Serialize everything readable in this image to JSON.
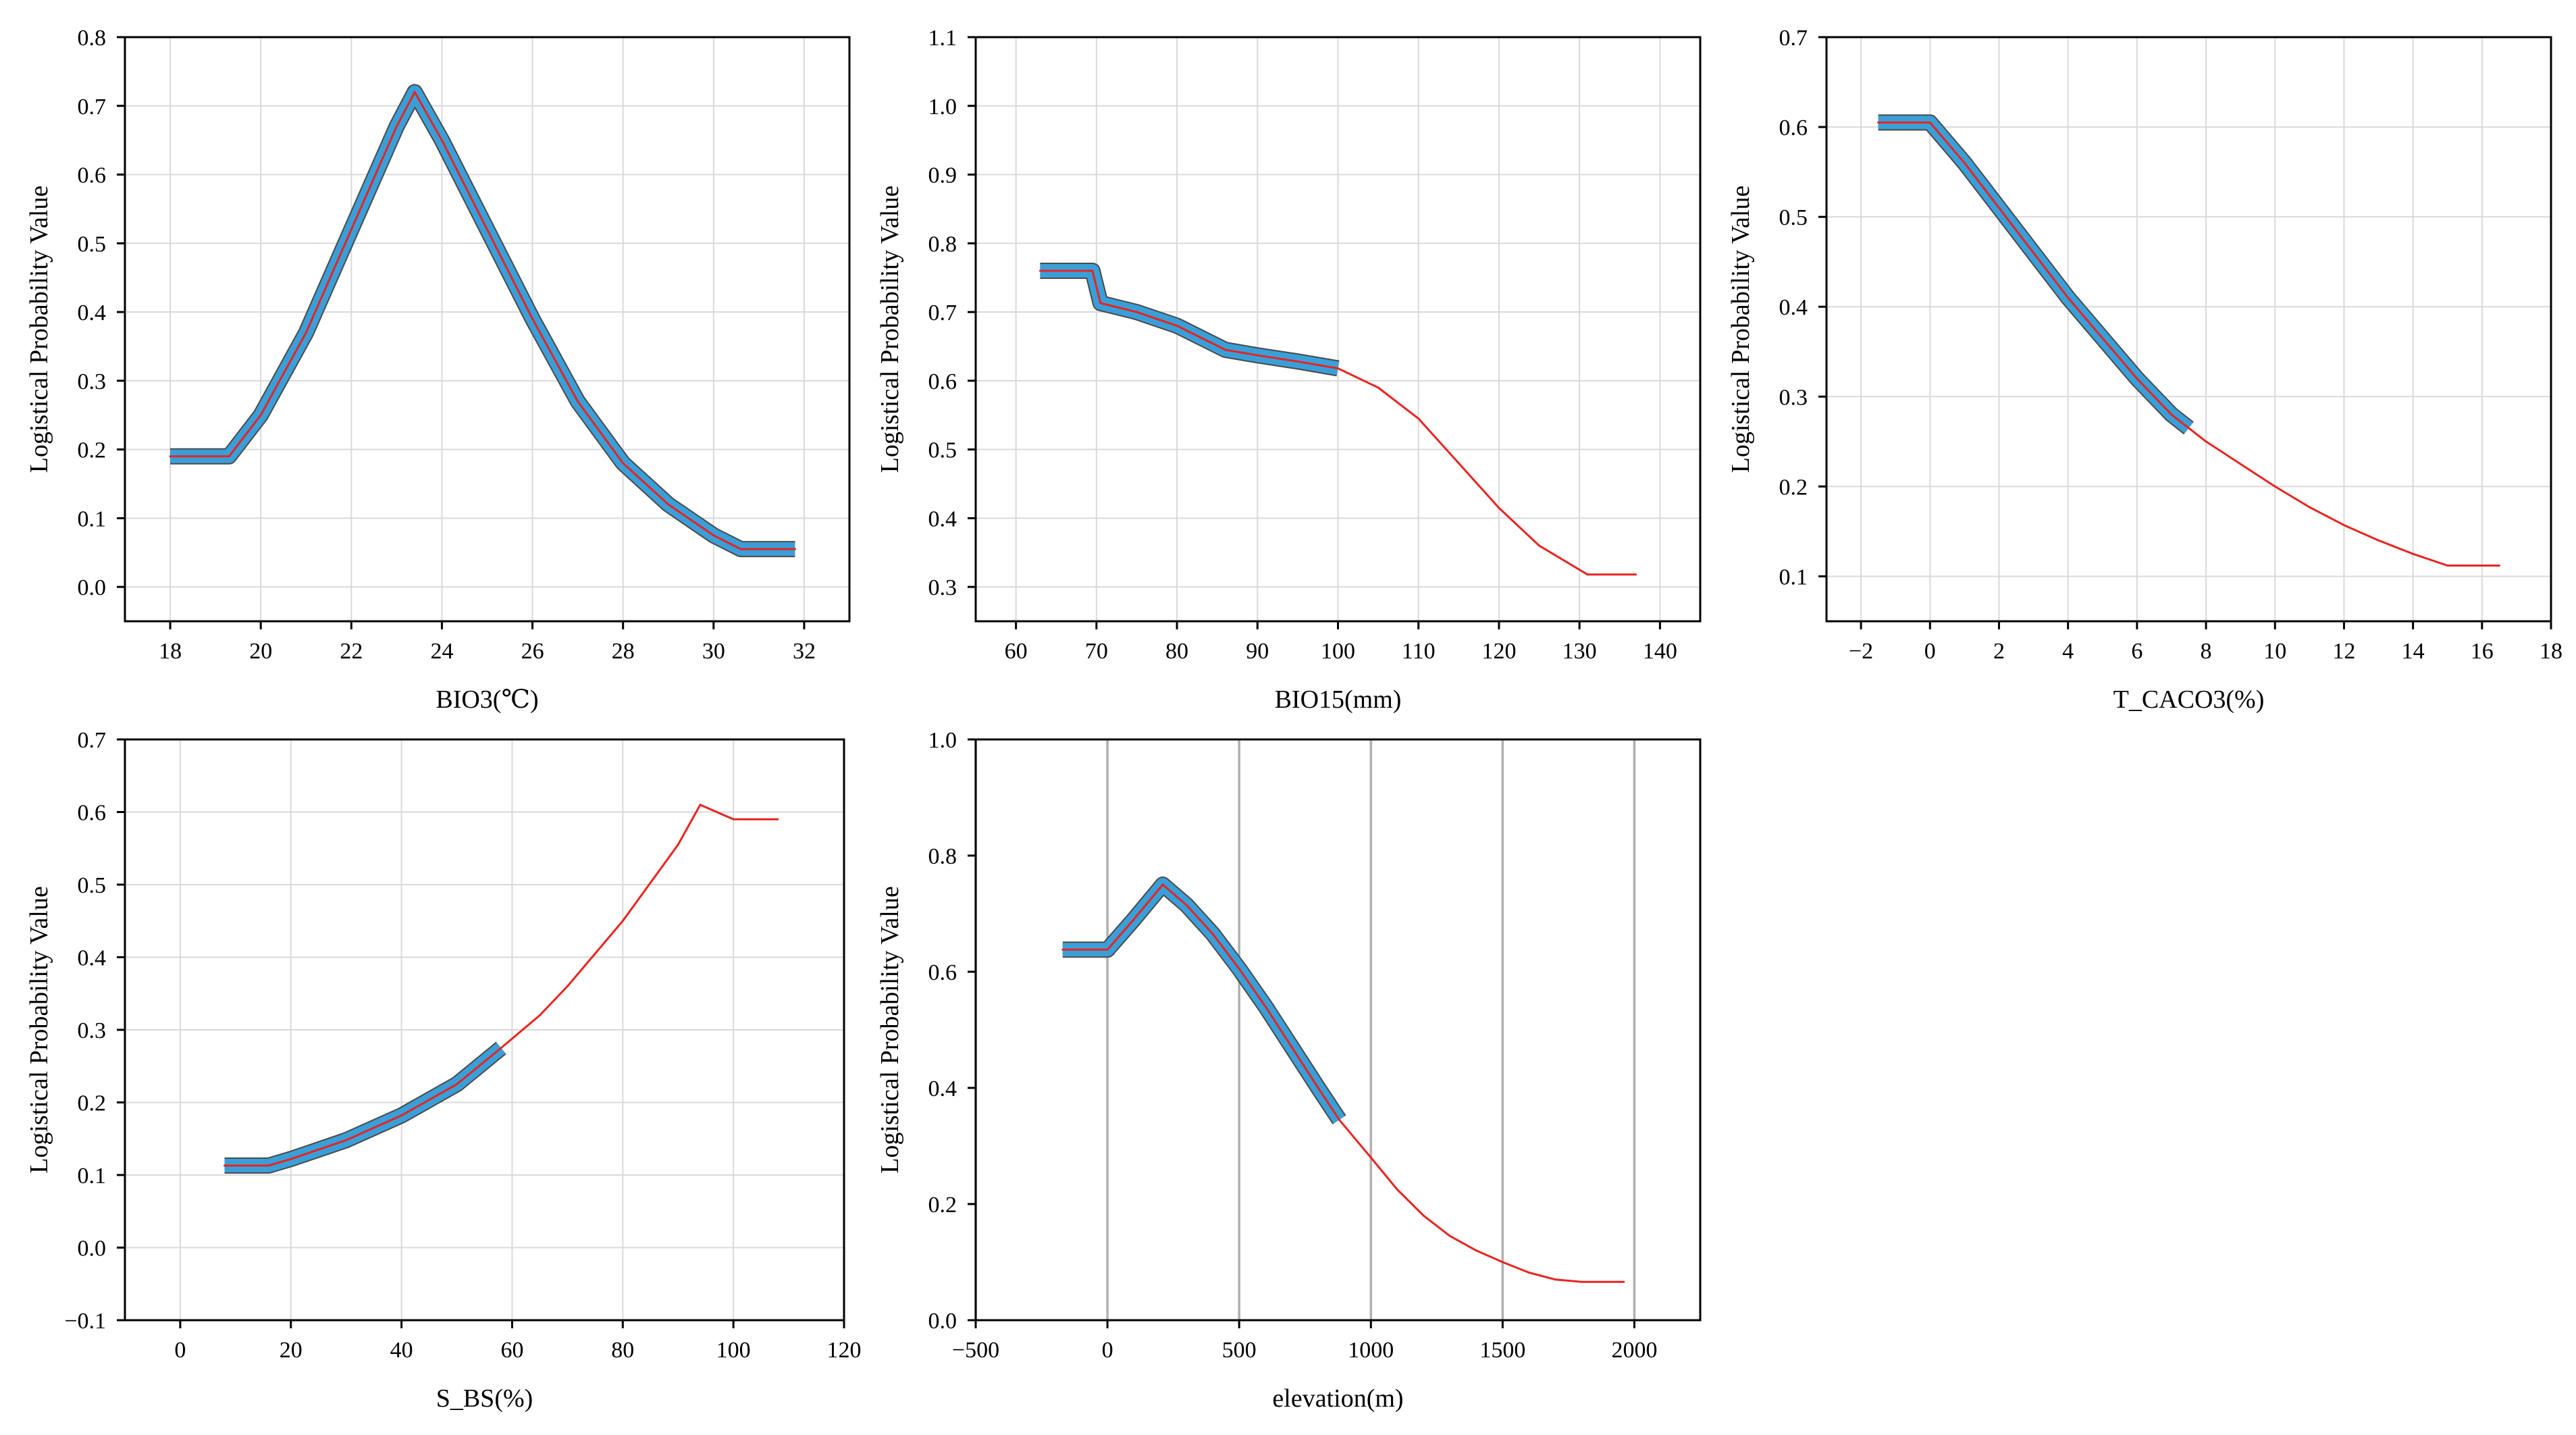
{
  "colors": {
    "response_line": "#e8241f",
    "confidence_band": "#3a9fd8",
    "band_outline": "#4a4a4a"
  },
  "chart_data": [
    {
      "type": "line",
      "title": "",
      "xlabel": "BIO3(℃)",
      "ylabel": "Logistical Probability Value",
      "xlim": [
        17,
        33
      ],
      "ylim": [
        -0.05,
        0.8
      ],
      "xticks": [
        18,
        20,
        22,
        24,
        26,
        28,
        30,
        32
      ],
      "yticks": [
        0.0,
        0.1,
        0.2,
        0.3,
        0.4,
        0.5,
        0.6,
        0.7,
        0.8
      ],
      "ytick_labels": [
        "0.0",
        "0.1",
        "0.2",
        "0.3",
        "0.4",
        "0.5",
        "0.6",
        "0.7",
        "0.8"
      ],
      "grid_style": "light",
      "series": [
        {
          "name": "response",
          "x": [
            18.0,
            19.3,
            20.0,
            21.0,
            22.0,
            23.0,
            23.4,
            24.0,
            25.0,
            26.0,
            27.0,
            28.0,
            29.0,
            30.0,
            30.6,
            31.8
          ],
          "y": [
            0.19,
            0.19,
            0.25,
            0.37,
            0.52,
            0.67,
            0.72,
            0.65,
            0.52,
            0.39,
            0.27,
            0.18,
            0.12,
            0.075,
            0.055,
            0.055
          ]
        },
        {
          "name": "confidence band",
          "x": [
            18.0,
            19.3,
            20.0,
            21.0,
            22.0,
            23.0,
            23.4,
            24.0,
            25.0,
            26.0,
            27.0,
            28.0,
            29.0,
            30.0,
            30.6,
            31.8
          ],
          "y": [
            0.19,
            0.19,
            0.25,
            0.37,
            0.52,
            0.67,
            0.72,
            0.65,
            0.52,
            0.39,
            0.27,
            0.18,
            0.12,
            0.075,
            0.055,
            0.055
          ]
        }
      ]
    },
    {
      "type": "line",
      "title": "",
      "xlabel": "BIO15(mm)",
      "ylabel": "Logistical Probability Value",
      "xlim": [
        55,
        145
      ],
      "ylim": [
        0.25,
        1.1
      ],
      "xticks": [
        60,
        70,
        80,
        90,
        100,
        110,
        120,
        130,
        140
      ],
      "yticks": [
        0.3,
        0.4,
        0.5,
        0.6,
        0.7,
        0.8,
        0.9,
        1.0,
        1.1
      ],
      "ytick_labels": [
        "0.3",
        "0.4",
        "0.5",
        "0.6",
        "0.7",
        "0.8",
        "0.9",
        "1.0",
        "1.1"
      ],
      "grid_style": "light",
      "series": [
        {
          "name": "response",
          "x": [
            63,
            69.5,
            70.5,
            75,
            80,
            86,
            90,
            95,
            100,
            105,
            110,
            115,
            120,
            125,
            131,
            137
          ],
          "y": [
            0.76,
            0.76,
            0.713,
            0.7,
            0.68,
            0.645,
            0.637,
            0.628,
            0.618,
            0.59,
            0.545,
            0.48,
            0.415,
            0.36,
            0.318,
            0.318
          ]
        },
        {
          "name": "confidence band",
          "x": [
            63,
            69.5,
            70.5,
            75,
            80,
            86,
            90,
            95,
            100
          ],
          "y": [
            0.76,
            0.76,
            0.713,
            0.7,
            0.68,
            0.645,
            0.637,
            0.628,
            0.618
          ]
        }
      ]
    },
    {
      "type": "line",
      "title": "",
      "xlabel": "T_CACO3(%)",
      "ylabel": "Logistical Probability Value",
      "xlim": [
        -3,
        18
      ],
      "ylim": [
        0.05,
        0.7
      ],
      "xticks": [
        -2,
        0,
        2,
        4,
        6,
        8,
        10,
        12,
        14,
        16,
        18
      ],
      "xtick_labels": [
        "−2",
        "0",
        "2",
        "4",
        "6",
        "8",
        "10",
        "12",
        "14",
        "16",
        "18"
      ],
      "yticks": [
        0.1,
        0.2,
        0.3,
        0.4,
        0.5,
        0.6,
        0.7
      ],
      "ytick_labels": [
        "0.1",
        "0.2",
        "0.3",
        "0.4",
        "0.5",
        "0.6",
        "0.7"
      ],
      "grid_style": "light",
      "series": [
        {
          "name": "response",
          "x": [
            -1.5,
            0.0,
            1.0,
            2.0,
            3.0,
            4.0,
            5.0,
            6.0,
            7.0,
            7.5,
            8.0,
            9.0,
            10.0,
            11.0,
            12.0,
            13.0,
            14.0,
            15.0,
            16.5
          ],
          "y": [
            0.605,
            0.605,
            0.56,
            0.51,
            0.46,
            0.41,
            0.365,
            0.32,
            0.28,
            0.265,
            0.25,
            0.225,
            0.2,
            0.177,
            0.157,
            0.14,
            0.125,
            0.112,
            0.112
          ]
        },
        {
          "name": "confidence band",
          "x": [
            -1.5,
            0.0,
            1.0,
            2.0,
            3.0,
            4.0,
            5.0,
            6.0,
            7.0,
            7.5
          ],
          "y": [
            0.605,
            0.605,
            0.56,
            0.51,
            0.46,
            0.41,
            0.365,
            0.32,
            0.28,
            0.265
          ]
        }
      ]
    },
    {
      "type": "line",
      "title": "",
      "xlabel": "S_BS(%)",
      "ylabel": "Logistical Probability Value",
      "xlim": [
        -10,
        120
      ],
      "ylim": [
        -0.1,
        0.7
      ],
      "xticks": [
        0,
        20,
        40,
        60,
        80,
        100,
        120
      ],
      "yticks": [
        -0.1,
        0.0,
        0.1,
        0.2,
        0.3,
        0.4,
        0.5,
        0.6,
        0.7
      ],
      "ytick_labels": [
        "−0.1",
        "0.0",
        "0.1",
        "0.2",
        "0.3",
        "0.4",
        "0.5",
        "0.6",
        "0.7"
      ],
      "grid_style": "light",
      "series": [
        {
          "name": "response",
          "x": [
            8,
            16,
            20,
            30,
            40,
            50,
            58,
            65,
            70,
            80,
            90,
            94,
            100,
            108
          ],
          "y": [
            0.113,
            0.113,
            0.122,
            0.148,
            0.182,
            0.225,
            0.275,
            0.32,
            0.36,
            0.45,
            0.555,
            0.61,
            0.59,
            0.59
          ]
        },
        {
          "name": "confidence band",
          "x": [
            8,
            16,
            20,
            30,
            40,
            50,
            58
          ],
          "y": [
            0.113,
            0.113,
            0.122,
            0.148,
            0.182,
            0.225,
            0.275
          ]
        }
      ]
    },
    {
      "type": "line",
      "title": "",
      "xlabel": "elevation(m)",
      "ylabel": "Logistical Probability Value",
      "xlim": [
        -500,
        2250
      ],
      "ylim": [
        0.0,
        1.0
      ],
      "xticks": [
        -500,
        0,
        500,
        1000,
        1500,
        2000
      ],
      "xtick_labels": [
        "−500",
        "0",
        "500",
        "1000",
        "1500",
        "2000"
      ],
      "yticks": [
        0.0,
        0.2,
        0.4,
        0.6,
        0.8,
        1.0
      ],
      "ytick_labels": [
        "0.0",
        "0.2",
        "0.4",
        "0.6",
        "0.8",
        "1.0"
      ],
      "grid_style": "vertical-strong",
      "series": [
        {
          "name": "response",
          "x": [
            -170,
            0,
            100,
            210,
            300,
            400,
            500,
            600,
            700,
            800,
            880,
            1000,
            1100,
            1200,
            1300,
            1400,
            1500,
            1600,
            1700,
            1800,
            1960
          ],
          "y": [
            0.638,
            0.638,
            0.69,
            0.75,
            0.715,
            0.665,
            0.605,
            0.54,
            0.47,
            0.4,
            0.345,
            0.28,
            0.225,
            0.18,
            0.145,
            0.12,
            0.1,
            0.082,
            0.07,
            0.066,
            0.066
          ]
        },
        {
          "name": "confidence band",
          "x": [
            -170,
            0,
            100,
            210,
            300,
            400,
            500,
            600,
            700,
            800,
            880
          ],
          "y": [
            0.638,
            0.638,
            0.69,
            0.75,
            0.715,
            0.665,
            0.605,
            0.54,
            0.47,
            0.4,
            0.345
          ]
        }
      ]
    }
  ]
}
